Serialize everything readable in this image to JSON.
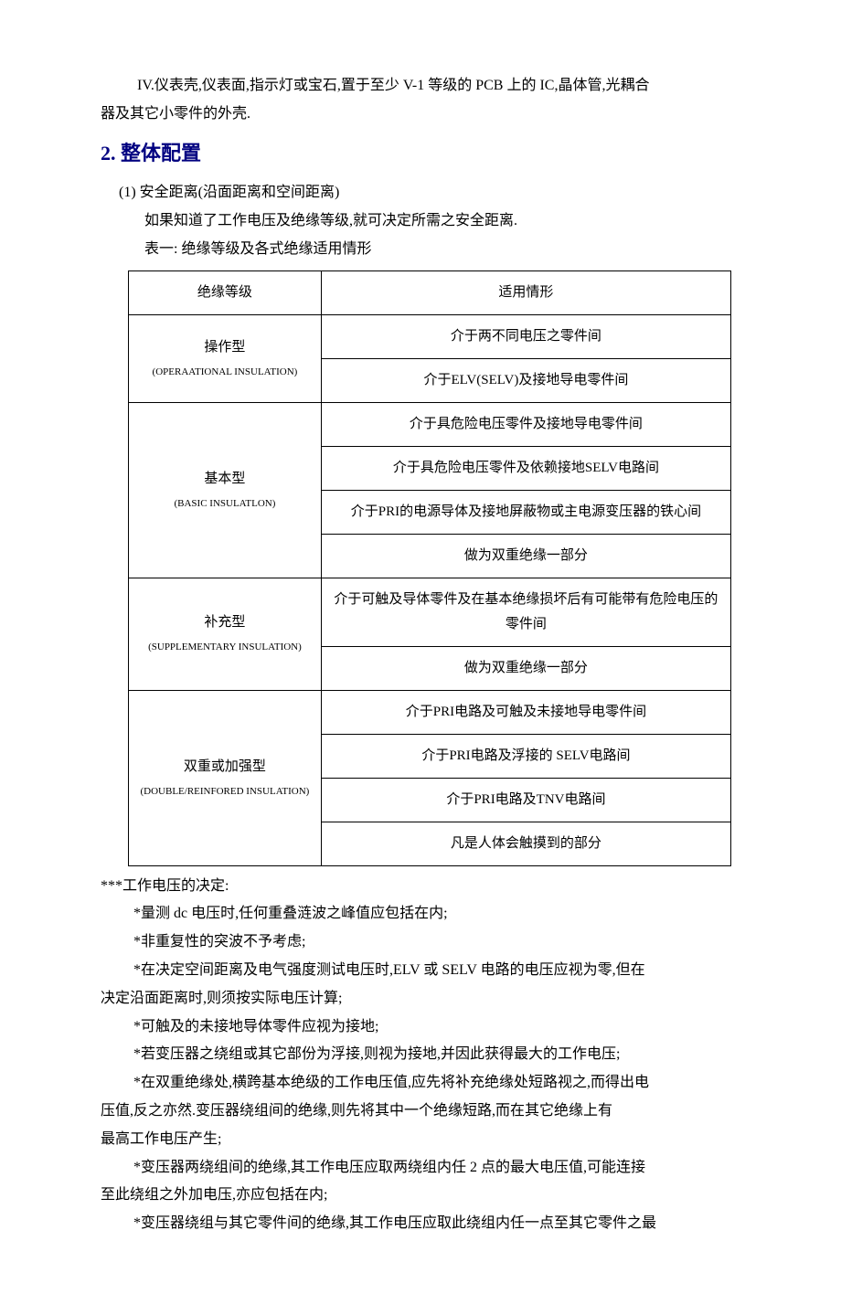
{
  "intro": {
    "line1": "IV.仪表壳,仪表面,指示灯或宝石,置于至少 V-1 等级的 PCB 上的 IC,晶体管,光耦合",
    "line2": "器及其它小零件的外壳."
  },
  "heading": "2. 整体配置",
  "section1": {
    "item": "(1)  安全距离(沿面距离和空间距离)",
    "line1": "如果知道了工作电压及绝缘等级,就可决定所需之安全距离.",
    "line2": "表一:  绝缘等级及各式绝缘适用情形"
  },
  "table": {
    "header": {
      "col1": "绝缘等级",
      "col2": "适用情形"
    },
    "rows": [
      {
        "type": "操作型",
        "type_en": "(OPERAATIONAL INSULATION)",
        "applies": [
          "介于两不同电压之零件间",
          "介于ELV(SELV)及接地导电零件间"
        ]
      },
      {
        "type": "基本型",
        "type_en": "(BASIC INSULATLON)",
        "applies": [
          "介于具危险电压零件及接地导电零件间",
          "介于具危险电压零件及依赖接地SELV电路间",
          "介于PRI的电源导体及接地屏蔽物或主电源变压器的铁心间",
          "做为双重绝缘一部分"
        ]
      },
      {
        "type": "补充型",
        "type_en": "(SUPPLEMENTARY INSULATION)",
        "applies": [
          "介于可触及导体零件及在基本绝缘损坏后有可能带有危险电压的零件间",
          "做为双重绝缘一部分"
        ]
      },
      {
        "type": "双重或加强型",
        "type_en": "(DOUBLE/REINFORED INSULATION)",
        "applies": [
          "介于PRI电路及可触及未接地导电零件间",
          "介于PRI电路及浮接的  SELV电路间",
          "介于PRI电路及TNV电路间",
          "凡是人体会触摸到的部分"
        ]
      }
    ]
  },
  "notes": {
    "title": "***工作电压的决定:",
    "items": [
      "*量测 dc 电压时,任何重叠涟波之峰值应包括在内;",
      "*非重复性的突波不予考虑;",
      "*在决定空间距离及电气强度测试电压时,ELV 或 SELV 电路的电压应视为零,但在"
    ],
    "cont1": "决定沿面距离时,则须按实际电压计算;",
    "items2": [
      "*可触及的未接地导体零件应视为接地;",
      "*若变压器之绕组或其它部份为浮接,则视为接地,并因此获得最大的工作电压;",
      "*在双重绝缘处,横跨基本绝级的工作电压值,应先将补充绝缘处短路视之,而得出电"
    ],
    "cont2a": "压值,反之亦然.变压器绕组间的绝缘,则先将其中一个绝缘短路,而在其它绝缘上有",
    "cont2b": "最高工作电压产生;",
    "items3": [
      "*变压器两绕组间的绝缘,其工作电压应取两绕组内任 2 点的最大电压值,可能连接"
    ],
    "cont3": "至此绕组之外加电压,亦应包括在内;",
    "items4": [
      "*变压器绕组与其它零件间的绝缘,其工作电压应取此绕组内任一点至其它零件之最"
    ]
  }
}
